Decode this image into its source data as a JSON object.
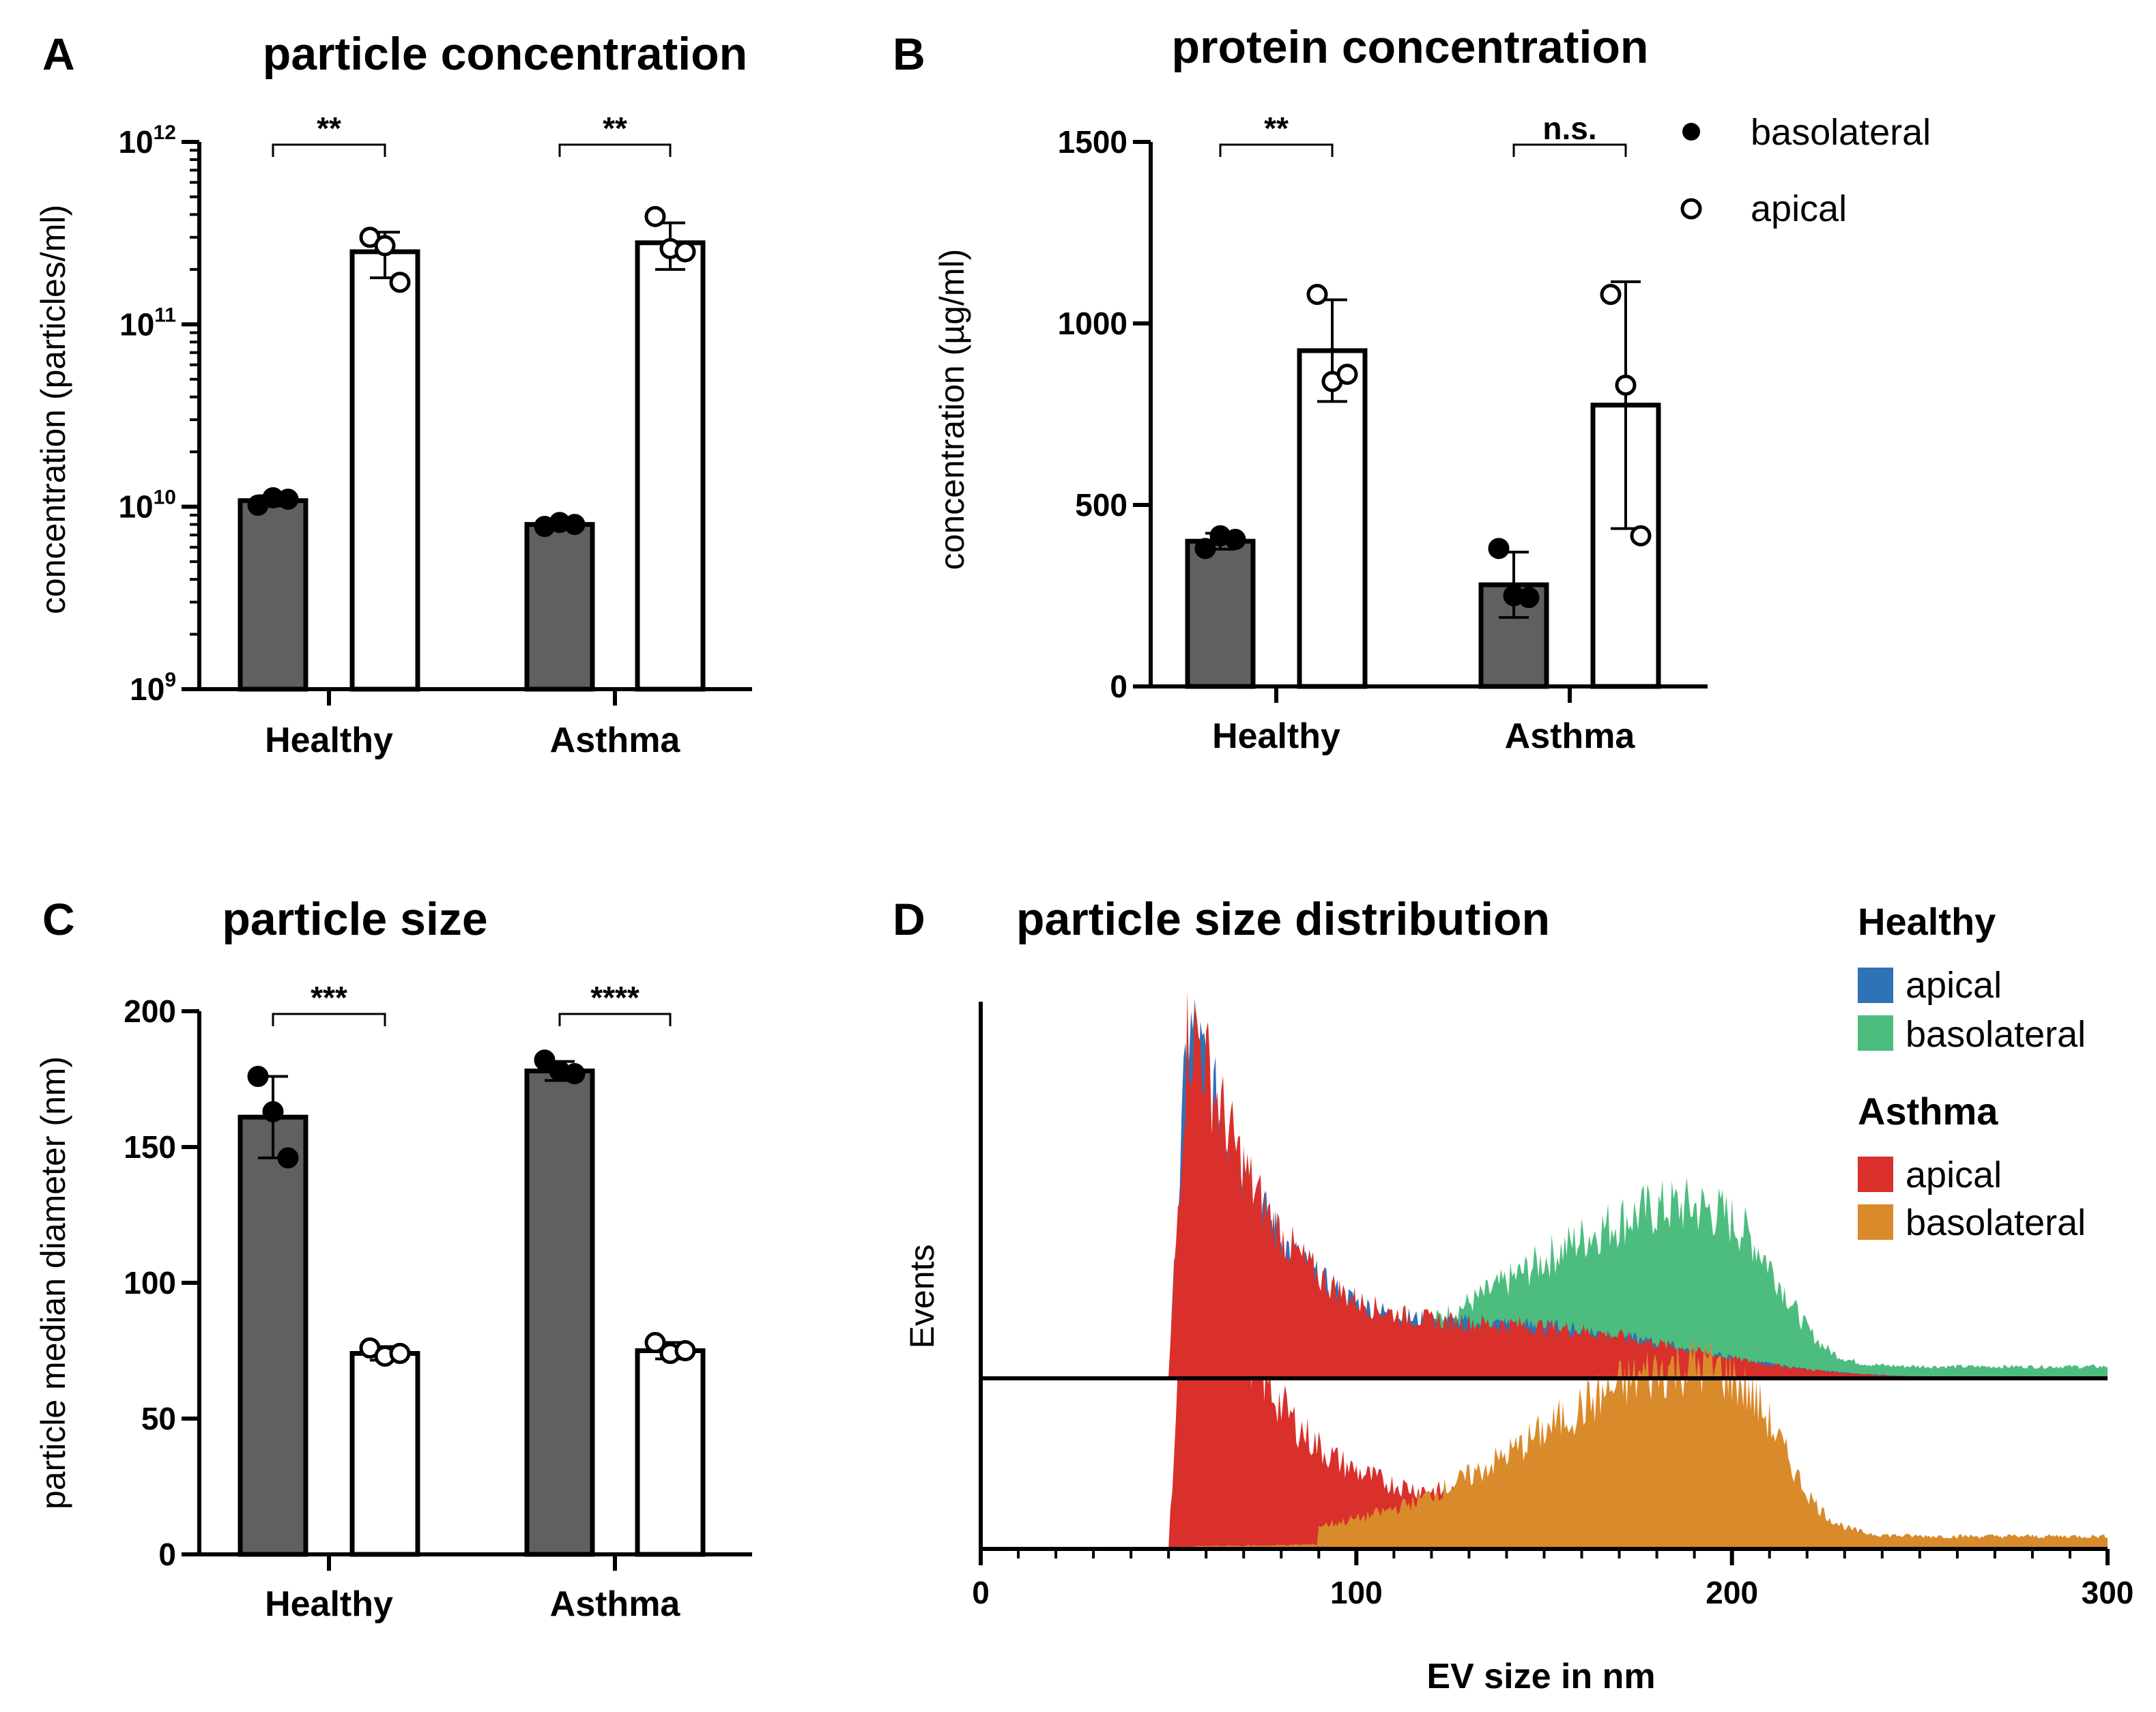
{
  "figure_panels": [
    "A",
    "B",
    "C",
    "D"
  ],
  "legend": {
    "basolateral_label": "basolateral",
    "apical_label": "apical",
    "basolateral_marker": "filled-circle-icon",
    "apical_marker": "open-circle-icon"
  },
  "colors": {
    "bar_basolateral": "#606060",
    "bar_apical": "#ffffff",
    "healthy_apical": "#2e72b8",
    "healthy_basolateral": "#4dbd7f",
    "asthma_apical": "#d9302c",
    "asthma_basolateral": "#d98a2b"
  },
  "chart_data": [
    {
      "panel": "A",
      "type": "bar",
      "title": "particle concentration",
      "ylabel": "concentration (particles/ml)",
      "yscale": "log",
      "ylim": [
        1000000000.0,
        1000000000000.0
      ],
      "yticks": [
        {
          "base": "10",
          "exp": "9"
        },
        {
          "base": "10",
          "exp": "10"
        },
        {
          "base": "10",
          "exp": "11"
        },
        {
          "base": "10",
          "exp": "12"
        }
      ],
      "categories": [
        "Healthy",
        "Asthma"
      ],
      "series": [
        {
          "name": "basolateral",
          "values": [
            10800000000.0,
            8000000000.0
          ],
          "err": [
            700000000.0,
            300000000.0
          ],
          "points": [
            [
              10200000000.0,
              11200000000.0,
              11000000000.0
            ],
            [
              7800000000.0,
              8200000000.0,
              8000000000.0
            ]
          ]
        },
        {
          "name": "apical",
          "values": [
            250000000000.0,
            280000000000.0
          ],
          "err": [
            70000000000.0,
            80000000000.0
          ],
          "points": [
            [
              300000000000.0,
              270000000000.0,
              170000000000.0
            ],
            [
              390000000000.0,
              260000000000.0,
              250000000000.0
            ]
          ]
        }
      ],
      "significance": [
        "**",
        "**"
      ]
    },
    {
      "panel": "B",
      "type": "bar",
      "title": "protein concentration",
      "ylabel": "concentration (µg/ml)",
      "yscale": "linear",
      "ylim": [
        0,
        1500
      ],
      "yticks": [
        "0",
        "500",
        "1000",
        "1500"
      ],
      "categories": [
        "Healthy",
        "Asthma"
      ],
      "series": [
        {
          "name": "basolateral",
          "values": [
            400,
            280
          ],
          "err": [
            22,
            90
          ],
          "points": [
            [
              380,
              415,
              405
            ],
            [
              380,
              250,
              245
            ]
          ]
        },
        {
          "name": "apical",
          "values": [
            925,
            775
          ],
          "err": [
            140,
            340
          ],
          "points": [
            [
              1080,
              840,
              860
            ],
            [
              1080,
              830,
              415
            ]
          ]
        }
      ],
      "significance": [
        "**",
        "n.s."
      ]
    },
    {
      "panel": "C",
      "type": "bar",
      "title": "particle size",
      "ylabel": "particle median diameter (nm)",
      "yscale": "linear",
      "ylim": [
        0,
        200
      ],
      "yticks": [
        "0",
        "50",
        "100",
        "150",
        "200"
      ],
      "categories": [
        "Healthy",
        "Asthma"
      ],
      "series": [
        {
          "name": "basolateral",
          "values": [
            161,
            178
          ],
          "err": [
            15,
            3.5
          ],
          "points": [
            [
              176,
              163,
              146
            ],
            [
              182,
              178,
              177
            ]
          ]
        },
        {
          "name": "apical",
          "values": [
            74,
            75
          ],
          "err": [
            2.5,
            3
          ],
          "points": [
            [
              76,
              73,
              74
            ],
            [
              78,
              74,
              75
            ]
          ]
        }
      ],
      "significance": [
        "***",
        "****"
      ]
    },
    {
      "panel": "D",
      "type": "area",
      "title": "particle size distribution",
      "xlabel": "EV size in nm",
      "ylabel": "Events",
      "xlim": [
        0,
        300
      ],
      "xticks": [
        "0",
        "100",
        "200",
        "300"
      ],
      "groups": [
        {
          "name": "Healthy",
          "series": [
            {
              "name": "apical",
              "color": "#2e72b8",
              "onset": 50,
              "peak_x": 57,
              "peak": 1.0,
              "shape": "sharp-then-decay"
            },
            {
              "name": "basolateral",
              "color": "#4dbd7f",
              "onset": 50,
              "peak_x": 190,
              "peak": 0.4,
              "shape": "broad"
            }
          ]
        },
        {
          "name": "Asthma",
          "series": [
            {
              "name": "apical",
              "color": "#d9302c",
              "onset": 50,
              "peak_x": 58,
              "peak": 1.0,
              "shape": "sharp-then-decay"
            },
            {
              "name": "basolateral",
              "color": "#d98a2b",
              "onset": 50,
              "peak_x": 194,
              "peak": 0.43,
              "shape": "broad"
            }
          ]
        }
      ]
    }
  ]
}
